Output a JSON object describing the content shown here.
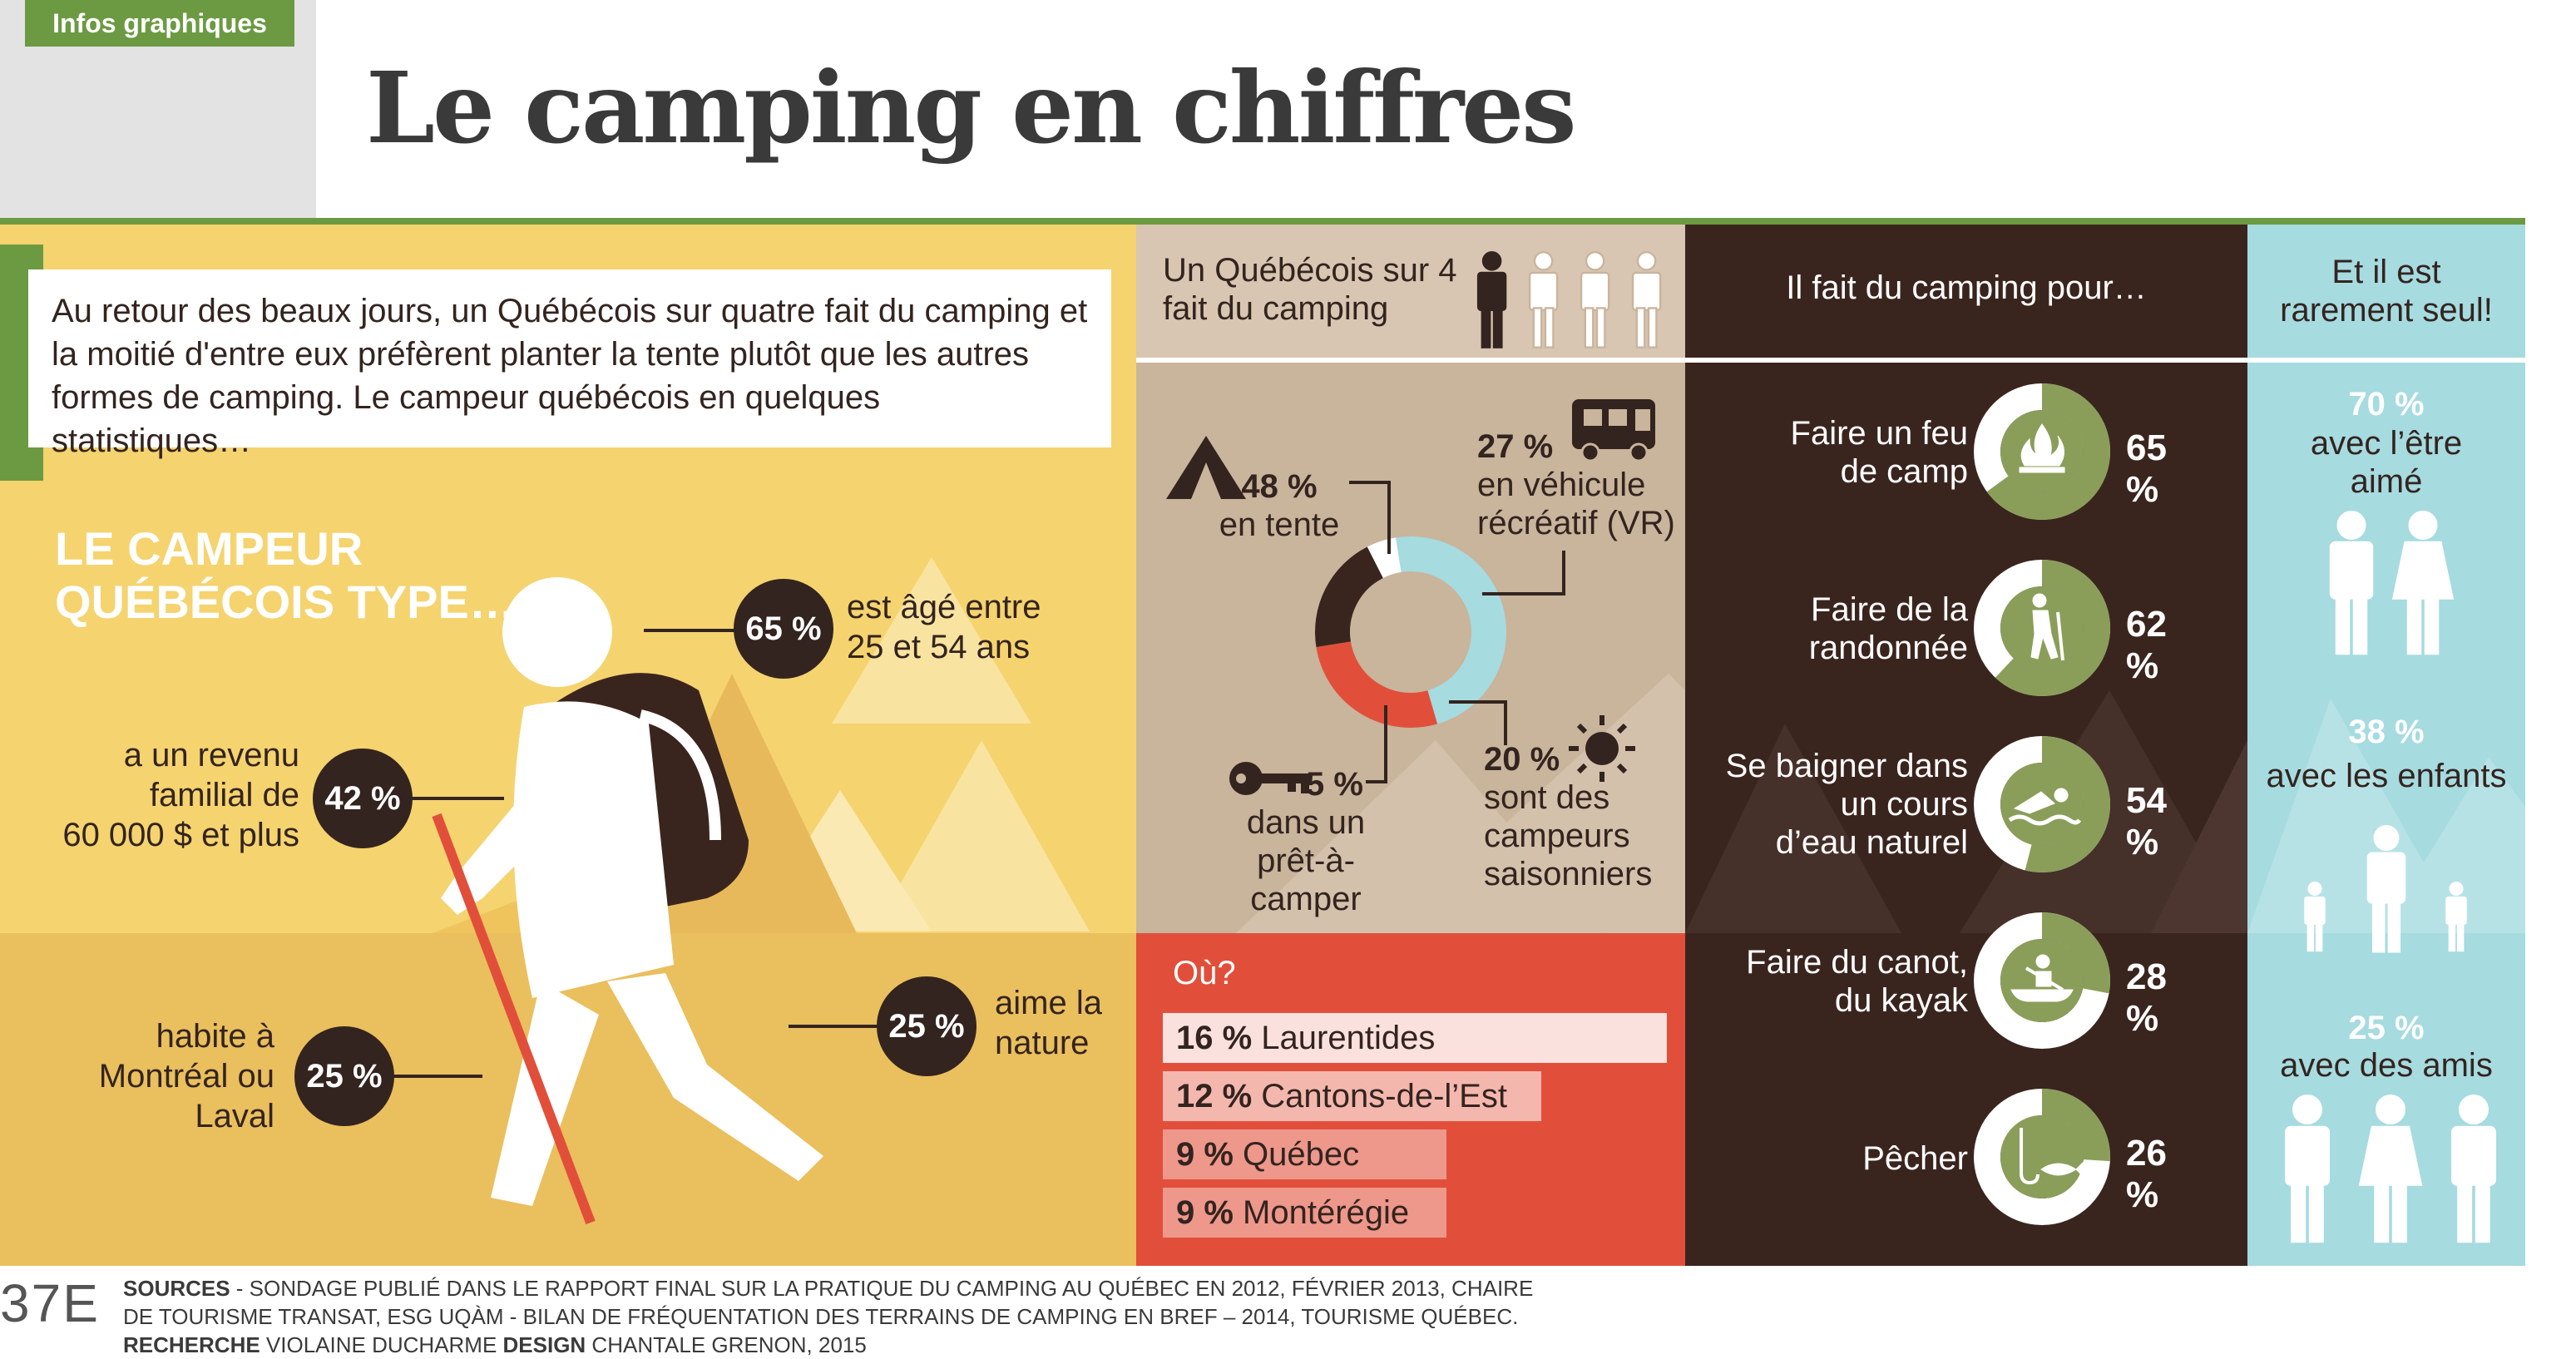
{
  "header": {
    "tag": "Infos graphiques",
    "title": "Le camping en chiffres"
  },
  "intro": "Au retour des beaux jours, un Québécois sur quatre fait du camping et la moitié d'entre eux préfèrent planter la tente plutôt que les autres formes de camping. Le campeur québécois en quelques statistiques…",
  "typical": {
    "title_line1": "LE CAMPEUR",
    "title_line2": "QUÉBÉCOIS TYPE…",
    "stats": [
      {
        "pct": "65 %",
        "line1": "est âgé entre",
        "line2": "25 et 54 ans"
      },
      {
        "pct": "42 %",
        "line1": "a un revenu",
        "line2": "familial de",
        "line3": "60 000 $ et plus"
      },
      {
        "pct": "25 %",
        "line1": "habite à",
        "line2": "Montréal ou",
        "line3": "Laval"
      },
      {
        "pct": "25 %",
        "line1": "aime la",
        "line2": "nature"
      }
    ]
  },
  "share": {
    "line1": "Un Québécois sur 4",
    "line2": "fait du camping",
    "people_total": 4,
    "people_highlighted": 1
  },
  "types": {
    "tent": {
      "pct": "48 %",
      "label": "en tente"
    },
    "rv": {
      "pct": "27 %",
      "line1": "en véhicule",
      "line2": "récréatif (VR)"
    },
    "ready": {
      "pct": "5 %",
      "line1": "dans un",
      "line2": "prêt-à-camper"
    },
    "seasonal": {
      "pct": "20 %",
      "line1": "sont des",
      "line2": "campeurs",
      "line3": "saisonniers"
    }
  },
  "chart_data": {
    "type": "pie",
    "categories": [
      "en tente",
      "en véhicule récréatif (VR)",
      "sont des campeurs saisonniers",
      "dans un prêt-à-camper"
    ],
    "values": [
      48,
      27,
      20,
      5
    ],
    "colors": [
      "#a6dbe0",
      "#e14f3b",
      "#3a251e",
      "#ffffff"
    ]
  },
  "where": {
    "title": "Où?",
    "items": [
      {
        "pct": "16 %",
        "name": "Laurentides",
        "value": 16
      },
      {
        "pct": "12 %",
        "name": "Cantons-de-l’Est",
        "value": 12
      },
      {
        "pct": "9 %",
        "name": "Québec",
        "value": 9
      },
      {
        "pct": "9 %",
        "name": "Montérégie",
        "value": 9
      }
    ]
  },
  "activities": {
    "title": "Il fait du camping pour…",
    "items": [
      {
        "line1": "Faire un feu",
        "line2": "de camp",
        "pct": "65 %",
        "value": 65,
        "icon": "campfire-icon"
      },
      {
        "line1": "Faire de la",
        "line2": "randonnée",
        "pct": "62 %",
        "value": 62,
        "icon": "hiker-icon"
      },
      {
        "line1": "Se baigner dans",
        "line2": "un cours",
        "line3": "d’eau naturel",
        "pct": "54 %",
        "value": 54,
        "icon": "swimmer-icon"
      },
      {
        "line1": "Faire du canot,",
        "line2": "du kayak",
        "pct": "28 %",
        "value": 28,
        "icon": "canoe-icon"
      },
      {
        "line1": "Pêcher",
        "pct": "26 %",
        "value": 26,
        "icon": "fishing-icon"
      }
    ]
  },
  "company": {
    "title_line1": "Et il est",
    "title_line2": "rarement seul!",
    "items": [
      {
        "pct": "70 %",
        "line1": "avec l’être",
        "line2": "aimé"
      },
      {
        "pct": "38 %",
        "line1": "avec les enfants"
      },
      {
        "pct": "25 %",
        "line1": "avec des amis"
      }
    ]
  },
  "footer": {
    "logo": "37E",
    "sources_label": "SOURCES",
    "sources_text": " - SONDAGE PUBLIÉ DANS LE RAPPORT FINAL SUR LA PRATIQUE DU CAMPING AU QUÉBEC EN 2012, FÉVRIER 2013, CHAIRE DE TOURISME TRANSAT, ESG UQÀM - BILAN DE FRÉQUENTATION DES TERRAINS DE CAMPING EN BREF – 2014, TOURISME QUÉBEC.",
    "research_label": "RECHERCHE",
    "research_name": " VIOLAINE DUCHARME ",
    "design_label": "DESIGN",
    "design_name": " CHANTALE GRENON, 2015"
  },
  "colors": {
    "green": "#6c9a42",
    "yellow": "#f5d36f",
    "dark_brown": "#3a251e",
    "tan": "#c9b49c",
    "red": "#e14f3b",
    "light_blue": "#a6dbe0",
    "olive": "#8a9e5a"
  }
}
